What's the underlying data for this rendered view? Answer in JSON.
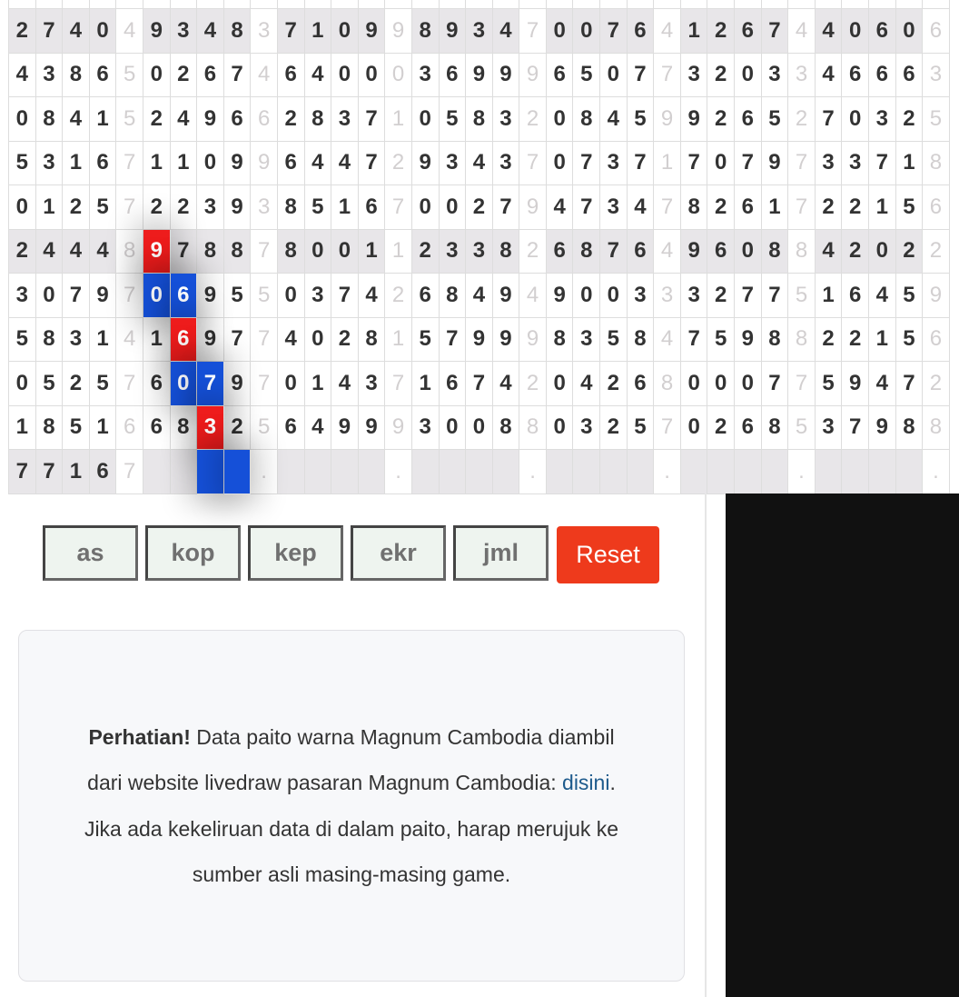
{
  "paito": {
    "rows": [
      [
        "2",
        "7",
        "4",
        "0",
        "4",
        "9",
        "3",
        "4",
        "8",
        "3",
        "7",
        "1",
        "0",
        "9",
        "9",
        "8",
        "9",
        "3",
        "4",
        "7",
        "0",
        "0",
        "7",
        "6",
        "4",
        "1",
        "2",
        "6",
        "7",
        "4",
        "4",
        "0",
        "6",
        "0",
        "6"
      ],
      [
        "4",
        "3",
        "8",
        "6",
        "5",
        "0",
        "2",
        "6",
        "7",
        "4",
        "6",
        "4",
        "0",
        "0",
        "0",
        "3",
        "6",
        "9",
        "9",
        "9",
        "6",
        "5",
        "0",
        "7",
        "7",
        "3",
        "2",
        "0",
        "3",
        "3",
        "4",
        "6",
        "6",
        "6",
        "3"
      ],
      [
        "0",
        "8",
        "4",
        "1",
        "5",
        "2",
        "4",
        "9",
        "6",
        "6",
        "2",
        "8",
        "3",
        "7",
        "1",
        "0",
        "5",
        "8",
        "3",
        "2",
        "0",
        "8",
        "4",
        "5",
        "9",
        "9",
        "2",
        "6",
        "5",
        "2",
        "7",
        "0",
        "3",
        "2",
        "5"
      ],
      [
        "5",
        "3",
        "1",
        "6",
        "7",
        "1",
        "1",
        "0",
        "9",
        "9",
        "6",
        "4",
        "4",
        "7",
        "2",
        "9",
        "3",
        "4",
        "3",
        "7",
        "0",
        "7",
        "3",
        "7",
        "1",
        "7",
        "0",
        "7",
        "9",
        "7",
        "3",
        "3",
        "7",
        "1",
        "8"
      ],
      [
        "0",
        "1",
        "2",
        "5",
        "7",
        "2",
        "2",
        "3",
        "9",
        "3",
        "8",
        "5",
        "1",
        "6",
        "7",
        "0",
        "0",
        "2",
        "7",
        "9",
        "4",
        "7",
        "3",
        "4",
        "7",
        "8",
        "2",
        "6",
        "1",
        "7",
        "2",
        "2",
        "1",
        "5",
        "6"
      ],
      [
        "2",
        "4",
        "4",
        "4",
        "8",
        "9",
        "7",
        "8",
        "8",
        "7",
        "8",
        "0",
        "0",
        "1",
        "1",
        "2",
        "3",
        "3",
        "8",
        "2",
        "6",
        "8",
        "7",
        "6",
        "4",
        "9",
        "6",
        "0",
        "8",
        "8",
        "4",
        "2",
        "0",
        "2",
        "2"
      ],
      [
        "3",
        "0",
        "7",
        "9",
        "7",
        "0",
        "6",
        "9",
        "5",
        "5",
        "0",
        "3",
        "7",
        "4",
        "2",
        "6",
        "8",
        "4",
        "9",
        "4",
        "9",
        "0",
        "0",
        "3",
        "3",
        "3",
        "2",
        "7",
        "7",
        "5",
        "1",
        "6",
        "4",
        "5",
        "9"
      ],
      [
        "5",
        "8",
        "3",
        "1",
        "4",
        "1",
        "6",
        "9",
        "7",
        "7",
        "4",
        "0",
        "2",
        "8",
        "1",
        "5",
        "7",
        "9",
        "9",
        "9",
        "8",
        "3",
        "5",
        "8",
        "4",
        "7",
        "5",
        "9",
        "8",
        "8",
        "2",
        "2",
        "1",
        "5",
        "6"
      ],
      [
        "0",
        "5",
        "2",
        "5",
        "7",
        "6",
        "0",
        "7",
        "9",
        "7",
        "0",
        "1",
        "4",
        "3",
        "7",
        "1",
        "6",
        "7",
        "4",
        "2",
        "0",
        "4",
        "2",
        "6",
        "8",
        "0",
        "0",
        "0",
        "7",
        "7",
        "5",
        "9",
        "4",
        "7",
        "2"
      ],
      [
        "1",
        "8",
        "5",
        "1",
        "6",
        "6",
        "8",
        "3",
        "2",
        "5",
        "6",
        "4",
        "9",
        "9",
        "9",
        "3",
        "0",
        "0",
        "8",
        "8",
        "0",
        "3",
        "2",
        "5",
        "7",
        "0",
        "2",
        "6",
        "8",
        "5",
        "3",
        "7",
        "9",
        "8",
        "8"
      ],
      [
        "7",
        "7",
        "1",
        "6",
        "7",
        "",
        "",
        "",
        "",
        ".",
        "",
        "",
        "",
        "",
        ".",
        "",
        "",
        "",
        "",
        ".",
        "",
        "",
        "",
        "",
        ".",
        "",
        "",
        "",
        "",
        ".",
        "",
        "",
        "",
        "",
        "."
      ]
    ],
    "shaded_rows": [
      0,
      5,
      10
    ],
    "highlights": [
      {
        "row": 5,
        "col": 5,
        "color": "red"
      },
      {
        "row": 6,
        "col": 5,
        "color": "blue"
      },
      {
        "row": 6,
        "col": 6,
        "color": "blue"
      },
      {
        "row": 7,
        "col": 6,
        "color": "red"
      },
      {
        "row": 8,
        "col": 6,
        "color": "blue"
      },
      {
        "row": 8,
        "col": 7,
        "color": "blue"
      },
      {
        "row": 9,
        "col": 7,
        "color": "red"
      },
      {
        "row": 10,
        "col": 7,
        "color": "blue"
      },
      {
        "row": 10,
        "col": 8,
        "color": "blue"
      }
    ],
    "colors": {
      "red": "#ee1c1c",
      "blue": "#1550d8",
      "shade": "#e8e6e9"
    }
  },
  "controls": {
    "buttons": [
      "as",
      "kop",
      "kep",
      "ekr",
      "jml"
    ],
    "reset_label": "Reset",
    "reset_color": "#ee3a1c"
  },
  "notice": {
    "bold": "Perhatian!",
    "text1": " Data paito warna Magnum Cambodia diambil dari website livedraw pasaran Magnum Cambodia: ",
    "link": "disini",
    "text2": ". Jika ada kekeliruan data di dalam paito, harap merujuk ke sumber asli masing-masing game."
  }
}
